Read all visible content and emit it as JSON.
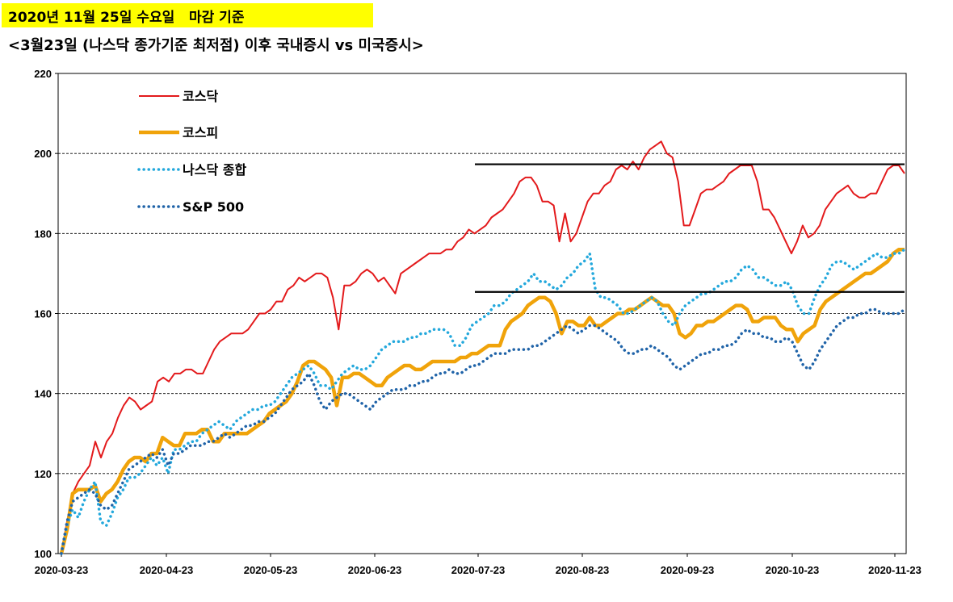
{
  "header": {
    "badge": "2020년 11월 25일 수요일   마감 기준",
    "subtitle": "<3월23일 (나스닥 종가기준 최저점) 이후 국내증시 vs 미국증시>"
  },
  "chart_data": {
    "type": "line",
    "title": "",
    "xlabel": "",
    "ylabel": "",
    "ylim": [
      100,
      220
    ],
    "yticks": [
      100,
      120,
      140,
      160,
      180,
      200,
      220
    ],
    "x_tick_labels": [
      "2020-03-23",
      "2020-04-23",
      "2020-05-23",
      "2020-06-23",
      "2020-07-23",
      "2020-08-23",
      "2020-09-23",
      "2020-10-23",
      "2020-11-23"
    ],
    "grid": "horizontal-dashed",
    "legend": "top-left",
    "series": [
      {
        "name": "코스닥",
        "color": "#e31a1c",
        "style": "solid",
        "values": [
          100,
          108,
          115,
          118,
          120,
          122,
          128,
          124,
          128,
          130,
          134,
          137,
          139,
          138,
          136,
          137,
          138,
          143,
          144,
          143,
          145,
          145,
          146,
          146,
          145,
          145,
          148,
          151,
          153,
          154,
          155,
          155,
          155,
          156,
          158,
          160,
          160,
          161,
          163,
          163,
          166,
          167,
          169,
          168,
          169,
          170,
          170,
          169,
          164,
          156,
          167,
          167,
          168,
          170,
          171,
          170,
          168,
          169,
          167,
          165,
          170,
          171,
          172,
          173,
          174,
          175,
          175,
          175,
          176,
          176,
          178,
          179,
          181,
          180,
          181,
          182,
          184,
          185,
          186,
          188,
          190,
          193,
          194,
          194,
          192,
          188,
          188,
          187,
          178,
          185,
          178,
          180,
          184,
          188,
          190,
          190,
          192,
          193,
          196,
          197,
          196,
          198,
          196,
          199,
          201,
          202,
          203,
          200,
          199,
          193,
          182,
          182,
          186,
          190,
          191,
          191,
          192,
          193,
          195,
          196,
          197,
          197,
          197,
          193,
          186,
          186,
          184,
          181,
          178,
          175,
          178,
          182,
          179,
          180,
          182,
          186,
          188,
          190,
          191,
          192,
          190,
          189,
          189,
          190,
          190,
          193,
          196,
          197,
          197,
          195
        ],
        "dates_note": ""
      },
      {
        "name": "코스피",
        "color": "#f0a30a",
        "style": "solid-thick",
        "values": [
          100,
          106,
          115,
          116,
          116,
          116,
          117,
          113,
          115,
          116,
          118,
          121,
          123,
          124,
          124,
          123,
          125,
          125,
          129,
          128,
          127,
          127,
          130,
          130,
          130,
          131,
          131,
          128,
          128,
          130,
          130,
          130,
          130,
          130,
          131,
          132,
          133,
          135,
          136,
          137,
          138,
          140,
          143,
          147,
          148,
          148,
          147,
          146,
          144,
          137,
          144,
          144,
          145,
          145,
          144,
          143,
          142,
          142,
          144,
          145,
          146,
          147,
          147,
          146,
          146,
          147,
          148,
          148,
          148,
          148,
          148,
          149,
          149,
          150,
          150,
          151,
          152,
          152,
          152,
          156,
          158,
          159,
          160,
          162,
          163,
          164,
          164,
          163,
          160,
          155,
          158,
          158,
          157,
          157,
          159,
          157,
          157,
          158,
          159,
          160,
          160,
          161,
          161,
          162,
          163,
          164,
          163,
          162,
          162,
          160,
          155,
          154,
          155,
          157,
          157,
          158,
          158,
          159,
          160,
          161,
          162,
          162,
          161,
          158,
          158,
          159,
          159,
          159,
          157,
          156,
          156,
          153,
          155,
          156,
          157,
          161,
          163,
          164,
          165,
          166,
          167,
          168,
          169,
          170,
          170,
          171,
          172,
          173,
          175,
          176,
          176
        ]
      },
      {
        "name": "나스닥 종합",
        "color": "#23a8dc",
        "style": "dotted",
        "values": [
          100,
          107,
          111,
          109,
          113,
          116,
          118,
          108,
          107,
          110,
          114,
          116,
          119,
          119,
          120,
          122,
          124,
          122,
          124,
          120,
          126,
          126,
          127,
          128,
          128,
          130,
          131,
          132,
          133,
          132,
          131,
          133,
          134,
          135,
          136,
          136,
          137,
          137,
          138,
          140,
          142,
          144,
          145,
          146,
          147,
          145,
          142,
          142,
          141,
          143,
          145,
          146,
          147,
          146,
          146,
          147,
          149,
          151,
          152,
          153,
          153,
          153,
          154,
          154,
          155,
          155,
          156,
          156,
          156,
          155,
          152,
          152,
          154,
          157,
          158,
          159,
          160,
          162,
          162,
          163,
          165,
          166,
          167,
          168,
          170,
          168,
          168,
          167,
          166,
          167,
          169,
          170,
          172,
          173,
          175,
          166,
          164,
          164,
          163,
          162,
          160,
          160,
          161,
          162,
          163,
          164,
          163,
          160,
          158,
          157,
          160,
          162,
          163,
          164,
          165,
          165,
          166,
          167,
          168,
          168,
          169,
          171,
          172,
          171,
          169,
          169,
          168,
          167,
          167,
          168,
          166,
          162,
          160,
          160,
          164,
          167,
          169,
          172,
          173,
          173,
          172,
          171,
          172,
          173,
          174,
          175,
          174,
          174,
          175,
          175,
          176
        ]
      },
      {
        "name": "S&P 500",
        "color": "#1f63a8",
        "style": "dotted",
        "values": [
          100,
          108,
          113,
          114,
          115,
          116,
          115,
          112,
          111,
          112,
          115,
          118,
          121,
          122,
          123,
          124,
          125,
          124,
          126,
          122,
          125,
          125,
          126,
          127,
          127,
          127,
          128,
          128,
          129,
          130,
          129,
          130,
          131,
          132,
          132,
          133,
          133,
          134,
          135,
          137,
          139,
          141,
          142,
          143,
          145,
          142,
          138,
          136,
          138,
          139,
          140,
          140,
          139,
          138,
          137,
          136,
          138,
          139,
          140,
          141,
          141,
          141,
          142,
          142,
          143,
          143,
          144,
          145,
          145,
          146,
          145,
          145,
          146,
          147,
          147,
          148,
          149,
          150,
          150,
          150,
          151,
          151,
          151,
          151,
          152,
          152,
          153,
          154,
          155,
          156,
          157,
          156,
          155,
          156,
          157,
          157,
          156,
          155,
          154,
          153,
          151,
          150,
          150,
          151,
          151,
          152,
          151,
          150,
          149,
          147,
          146,
          147,
          148,
          149,
          150,
          150,
          151,
          151,
          152,
          152,
          153,
          155,
          156,
          155,
          155,
          154,
          154,
          153,
          153,
          154,
          153,
          150,
          147,
          146,
          148,
          151,
          153,
          155,
          157,
          158,
          159,
          159,
          160,
          160,
          161,
          161,
          160,
          160,
          160,
          160,
          161
        ]
      }
    ]
  }
}
